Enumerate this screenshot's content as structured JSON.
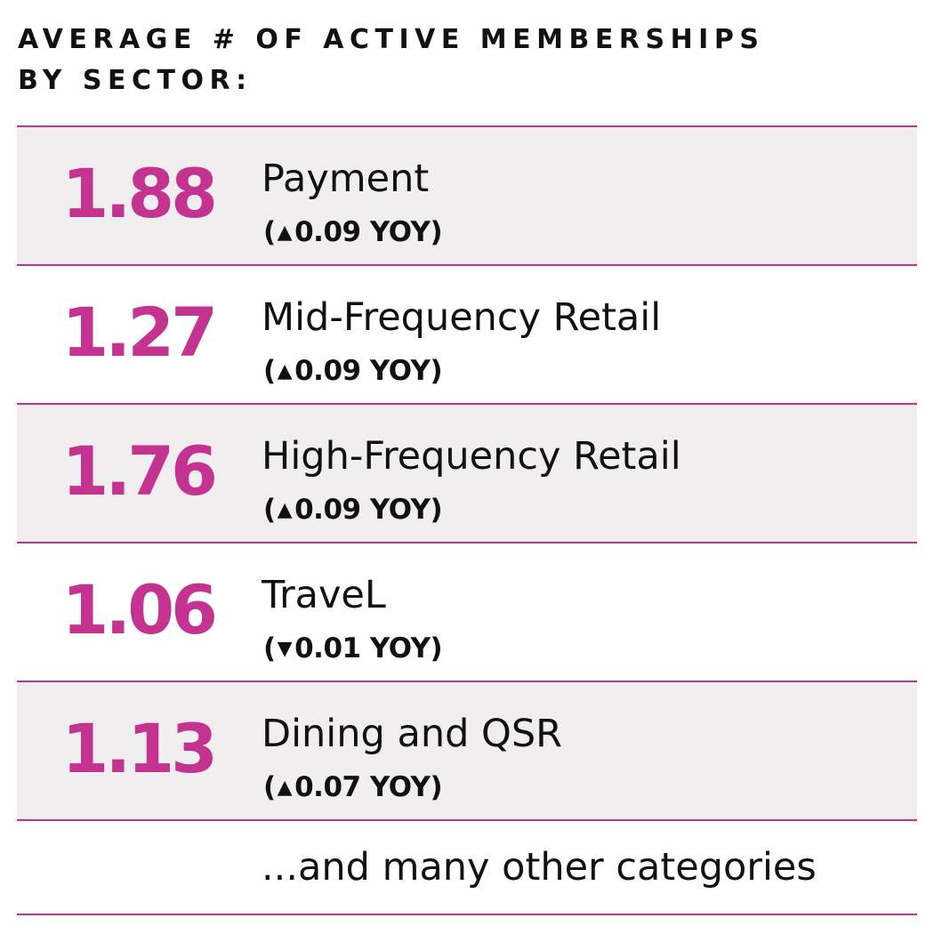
{
  "header": {
    "title_line1": "AVERAGE # OF ACTIVE MEMBERSHIPS",
    "title_line2": "BY SECTOR:"
  },
  "colors": {
    "accent": "#c3338f",
    "row_shade": "#f0eeef",
    "text": "#111111"
  },
  "chart_data": {
    "type": "table",
    "title": "AVERAGE # OF ACTIVE MEMBERSHIPS BY SECTOR:",
    "columns": [
      "value",
      "sector",
      "yoy_change"
    ],
    "rows": [
      {
        "value": "1.88",
        "sector": "Payment",
        "direction": "up",
        "arrow": "▲",
        "change": "0.09",
        "suffix": "YOY"
      },
      {
        "value": "1.27",
        "sector": "Mid-Frequency Retail",
        "direction": "up",
        "arrow": "▲",
        "change": "0.09",
        "suffix": "YOY"
      },
      {
        "value": "1.76",
        "sector": "High-Frequency Retail",
        "direction": "up",
        "arrow": "▲",
        "change": "0.09",
        "suffix": "YOY"
      },
      {
        "value": "1.06",
        "sector": "TraveL",
        "direction": "down",
        "arrow": "▼",
        "change": "0.01",
        "suffix": "YOY"
      },
      {
        "value": "1.13",
        "sector": "Dining and QSR",
        "direction": "up",
        "arrow": "▲",
        "change": "0.07",
        "suffix": "YOY"
      }
    ],
    "footer_note": "...and many other categories"
  }
}
